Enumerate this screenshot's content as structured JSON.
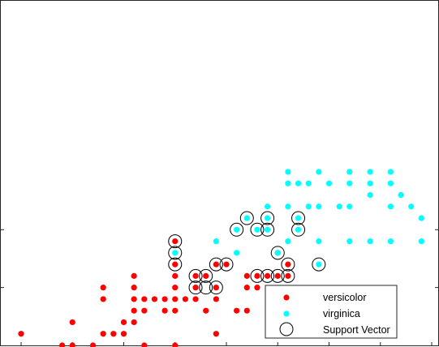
{
  "chart_data": {
    "type": "scatter",
    "title": "",
    "xlabel": "",
    "ylabel": "",
    "xlim": [
      4.4,
      8.6
    ],
    "ylim": [
      1.0,
      2.5
    ],
    "grid": false,
    "legend_position": "bottom-right",
    "colors": {
      "versicolor": "#ff0000",
      "virginica": "#00ffff",
      "support_vector": "#000000",
      "axes": "#262626"
    },
    "series": [
      {
        "name": "versicolor",
        "marker": "filled-dot",
        "points": [
          [
            4.9,
            1.0
          ],
          [
            5.0,
            1.0
          ],
          [
            5.2,
            1.0
          ],
          [
            5.7,
            1.0
          ],
          [
            6.0,
            1.0
          ],
          [
            4.5,
            1.1
          ],
          [
            5.3,
            1.1
          ],
          [
            5.4,
            1.1
          ],
          [
            5.5,
            1.1
          ],
          [
            6.4,
            1.1
          ],
          [
            5.0,
            1.2
          ],
          [
            5.5,
            1.2
          ],
          [
            5.6,
            1.2
          ],
          [
            5.6,
            1.3
          ],
          [
            5.7,
            1.3
          ],
          [
            5.9,
            1.3
          ],
          [
            6.0,
            1.3
          ],
          [
            6.3,
            1.3
          ],
          [
            6.6,
            1.3
          ],
          [
            6.7,
            1.3
          ],
          [
            5.3,
            1.4
          ],
          [
            5.6,
            1.4
          ],
          [
            5.7,
            1.4
          ],
          [
            5.8,
            1.4
          ],
          [
            5.9,
            1.4
          ],
          [
            6.0,
            1.4
          ],
          [
            6.1,
            1.4
          ],
          [
            6.2,
            1.4
          ],
          [
            6.4,
            1.4
          ],
          [
            5.3,
            1.5
          ],
          [
            5.6,
            1.5
          ],
          [
            6.0,
            1.5
          ],
          [
            6.2,
            1.5
          ],
          [
            6.4,
            1.5
          ],
          [
            6.7,
            1.5
          ],
          [
            6.8,
            1.5
          ],
          [
            5.6,
            1.6
          ],
          [
            6.0,
            1.6
          ],
          [
            6.2,
            1.6
          ],
          [
            6.3,
            1.6
          ],
          [
            6.7,
            1.6
          ],
          [
            6.8,
            1.6
          ],
          [
            6.9,
            1.6
          ],
          [
            7.0,
            1.6
          ],
          [
            7.1,
            1.6
          ],
          [
            6.0,
            1.7
          ],
          [
            6.4,
            1.7
          ],
          [
            6.5,
            1.7
          ],
          [
            7.1,
            1.7
          ],
          [
            7.0,
            1.8
          ],
          [
            6.0,
            1.9
          ]
        ]
      },
      {
        "name": "virginica",
        "marker": "filled-dot",
        "points": [
          [
            7.8,
            1.4
          ],
          [
            7.4,
            1.7
          ],
          [
            6.0,
            1.8
          ],
          [
            6.6,
            1.8
          ],
          [
            7.0,
            1.8
          ],
          [
            6.4,
            1.9
          ],
          [
            7.1,
            1.9
          ],
          [
            7.4,
            1.9
          ],
          [
            7.7,
            1.9
          ],
          [
            7.9,
            1.9
          ],
          [
            8.1,
            1.9
          ],
          [
            8.4,
            1.9
          ],
          [
            6.6,
            2.0
          ],
          [
            6.8,
            2.0
          ],
          [
            6.9,
            2.0
          ],
          [
            7.2,
            2.0
          ],
          [
            6.7,
            2.1
          ],
          [
            6.9,
            2.1
          ],
          [
            7.2,
            2.1
          ],
          [
            8.4,
            2.1
          ],
          [
            6.9,
            2.2
          ],
          [
            7.1,
            2.2
          ],
          [
            7.3,
            2.2
          ],
          [
            7.4,
            2.2
          ],
          [
            7.6,
            2.2
          ],
          [
            7.7,
            2.2
          ],
          [
            8.1,
            2.2
          ],
          [
            8.3,
            2.2
          ],
          [
            7.9,
            2.3
          ],
          [
            8.2,
            2.3
          ],
          [
            7.1,
            2.4
          ],
          [
            7.2,
            2.4
          ],
          [
            7.3,
            2.4
          ],
          [
            7.5,
            2.4
          ],
          [
            7.7,
            2.4
          ],
          [
            7.9,
            2.4
          ],
          [
            8.1,
            2.4
          ],
          [
            8.6,
            2.4
          ],
          [
            7.1,
            2.5
          ],
          [
            7.4,
            2.5
          ],
          [
            7.7,
            2.5
          ],
          [
            7.9,
            2.5
          ],
          [
            8.1,
            2.5
          ]
        ]
      },
      {
        "name": "Support Vector",
        "marker": "open-circle",
        "points": [
          [
            6.0,
            1.9
          ],
          [
            6.0,
            1.8
          ],
          [
            6.0,
            1.7
          ],
          [
            6.4,
            1.7
          ],
          [
            6.5,
            1.7
          ],
          [
            7.1,
            1.7
          ],
          [
            7.0,
            1.8
          ],
          [
            6.2,
            1.6
          ],
          [
            6.3,
            1.6
          ],
          [
            6.8,
            1.6
          ],
          [
            6.9,
            1.6
          ],
          [
            7.0,
            1.6
          ],
          [
            7.1,
            1.6
          ],
          [
            6.2,
            1.5
          ],
          [
            6.4,
            1.5
          ],
          [
            6.3,
            1.5
          ],
          [
            7.4,
            1.7
          ],
          [
            6.6,
            2.0
          ],
          [
            6.8,
            2.0
          ],
          [
            6.9,
            2.0
          ],
          [
            7.2,
            2.0
          ],
          [
            6.7,
            2.1
          ],
          [
            6.9,
            2.1
          ],
          [
            7.2,
            2.1
          ],
          [
            7.8,
            1.4
          ]
        ]
      }
    ],
    "legend_entries": [
      "versicolor",
      "virginica",
      "Support Vector"
    ]
  }
}
